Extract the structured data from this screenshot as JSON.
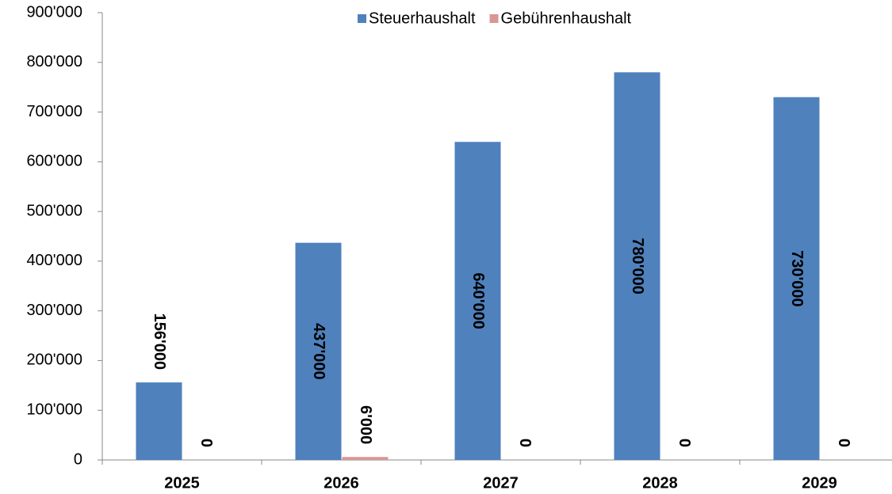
{
  "chart_data": {
    "type": "bar",
    "categories": [
      "2025",
      "2026",
      "2027",
      "2028",
      "2029"
    ],
    "series": [
      {
        "name": "Steuerhaushalt",
        "color": "#4f81bd",
        "values": [
          156000,
          437000,
          640000,
          780000,
          730000
        ],
        "value_labels": [
          "156'000",
          "437'000",
          "640'000",
          "780'000",
          "730'000"
        ]
      },
      {
        "name": "Gebührenhaushalt",
        "color": "#d99694",
        "values": [
          0,
          6000,
          0,
          0,
          0
        ],
        "value_labels": [
          "0",
          "6'000",
          "0",
          "0",
          "0"
        ]
      }
    ],
    "ylim": [
      0,
      900000
    ],
    "yticks": [
      {
        "value": 0,
        "label": "0"
      },
      {
        "value": 100000,
        "label": "100'000"
      },
      {
        "value": 200000,
        "label": "200'000"
      },
      {
        "value": 300000,
        "label": "300'000"
      },
      {
        "value": 400000,
        "label": "400'000"
      },
      {
        "value": 500000,
        "label": "500'000"
      },
      {
        "value": 600000,
        "label": "600'000"
      },
      {
        "value": 700000,
        "label": "700'000"
      },
      {
        "value": 800000,
        "label": "800'000"
      },
      {
        "value": 900000,
        "label": "900'000"
      }
    ],
    "legend": "top"
  }
}
